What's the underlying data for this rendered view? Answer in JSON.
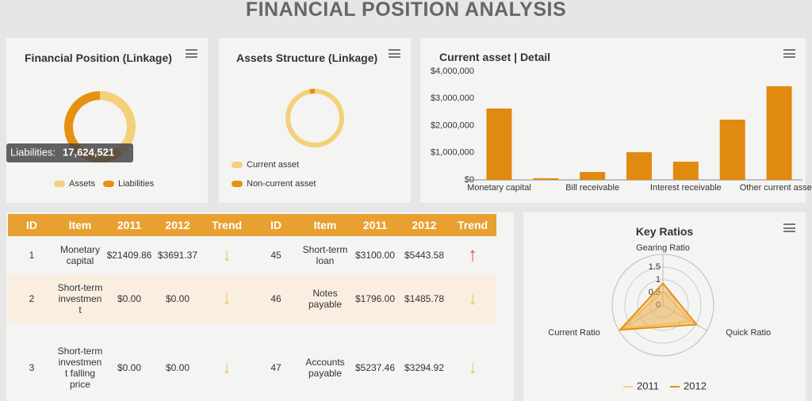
{
  "title": "FINANCIAL POSITION ANALYSIS",
  "chart_data": [
    {
      "type": "pie",
      "title": "Financial Position (Linkage)",
      "categories": [
        "Assets",
        "Liabilities"
      ],
      "values": [
        11300000,
        17624521
      ],
      "colors": [
        "#f5d07a",
        "#e8900f"
      ],
      "legend_orient": "horizontal",
      "tooltip": {
        "name": "Liabilities:",
        "label": "17,624,521"
      }
    },
    {
      "type": "pie",
      "title": "Assets Structure (Linkage)",
      "categories": [
        "Current asset",
        "Non-current asset"
      ],
      "values": [
        97,
        3
      ],
      "colors": [
        "#f5d07a",
        "#e8900f"
      ],
      "legend_orient": "vertical"
    },
    {
      "type": "bar",
      "title": "Current asset | Detail",
      "categories": [
        "Monetary capital",
        null,
        "Bill receivable",
        null,
        "Interest receivable",
        null,
        "Other current assets"
      ],
      "values": [
        2630000,
        60000,
        290000,
        1020000,
        670000,
        2220000,
        3450000
      ],
      "color": "#e08a10",
      "ylim": [
        0,
        4000000
      ],
      "yticks": [
        {
          "value": 0,
          "label": "$0"
        },
        {
          "value": 1000000,
          "label": "$1,000,000"
        },
        {
          "value": 2000000,
          "label": "$2,000,000"
        },
        {
          "value": 3000000,
          "label": "$3,000,000"
        },
        {
          "value": 4000000,
          "label": "$4,000,000"
        }
      ],
      "grid": false
    },
    {
      "type": "radar",
      "title": "Key Ratios",
      "indicators": [
        "Gearing Ratio",
        "Quick Ratio",
        "Current Ratio"
      ],
      "rlim": [
        0,
        2
      ],
      "rticks": [
        0,
        0.5,
        1,
        1.5
      ],
      "series": [
        {
          "name": "2011",
          "color": "#f5d07a",
          "values": [
            0.55,
            1.3,
            1.85
          ]
        },
        {
          "name": "2012",
          "color": "#e8900f",
          "values": [
            0.86,
            1.53,
            1.95
          ]
        }
      ]
    }
  ],
  "table": {
    "columns": [
      "ID",
      "Item",
      "2011",
      "2012",
      "Trend",
      "ID",
      "Item",
      "2011",
      "2012",
      "Trend"
    ],
    "rows": [
      [
        "1",
        "Monetary capital",
        "$21409.86",
        "$3691.37",
        "↓",
        "45",
        "Short-term loan",
        "$3100.00",
        "$5443.58",
        "↑"
      ],
      [
        "2",
        "Short-term investment",
        "$0.00",
        "$0.00",
        "↓",
        "46",
        "Notes payable",
        "$1796.00",
        "$1485.78",
        "↓"
      ],
      [
        "3",
        "Short-term investment falling price",
        "$0.00",
        "$0.00",
        "↓",
        "47",
        "Accounts payable",
        "$5237.46",
        "$3294.92",
        "↓"
      ]
    ]
  }
}
